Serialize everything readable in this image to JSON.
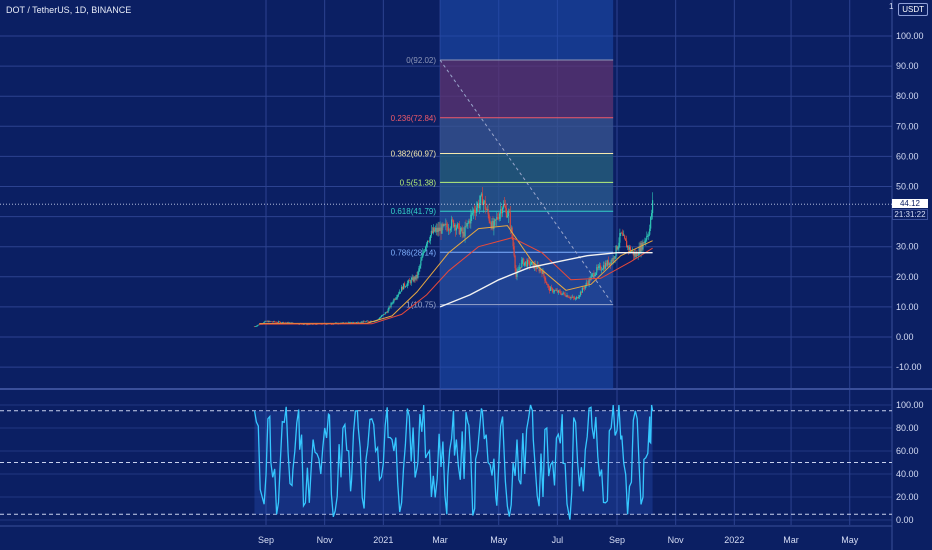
{
  "header": {
    "title": "DOT / TetherUS, 1D, BINANCE"
  },
  "currency": "USDT",
  "axis_top_partial_label": "1",
  "price_tag": {
    "value": "44.12",
    "countdown": "21:31:22"
  },
  "colors": {
    "background": "#0b1f63",
    "grid": "#2c4290",
    "candle_up": "#2ec4b6",
    "candle_down": "#e0483e",
    "ma_fast": "#e8a840",
    "ma_slow": "#e8493a",
    "ma_long": "#f2f2f2",
    "oscillator": "#35c7ff",
    "fib_red": "#8a2245",
    "fib_green": "#2e6f5a",
    "fib_range": "#1f4fb3"
  },
  "chart_data": [
    {
      "type": "candlestick",
      "title": "DOT / TetherUS, 1D, BINANCE",
      "ylim": [
        -15,
        105
      ],
      "y_ticks": [
        "100.00",
        "90.00",
        "80.00",
        "70.00",
        "60.00",
        "50.00",
        "40.00",
        "30.00",
        "20.00",
        "10.00",
        "0.00",
        "-10.00"
      ],
      "x_ticks": [
        "Sep",
        "Nov",
        "2021",
        "Mar",
        "May",
        "Jul",
        "Sep",
        "Nov",
        "2022",
        "Mar",
        "May"
      ],
      "last_price": 44.12,
      "price_path": {
        "x": [
          "2020-08-20",
          "2020-09-01",
          "2020-09-20",
          "2020-10-15",
          "2020-11-15",
          "2020-12-10",
          "2020-12-25",
          "2021-01-05",
          "2021-01-12",
          "2021-01-22",
          "2021-02-05",
          "2021-02-15",
          "2021-02-22",
          "2021-03-05",
          "2021-03-15",
          "2021-03-25",
          "2021-04-05",
          "2021-04-14",
          "2021-04-25",
          "2021-05-05",
          "2021-05-12",
          "2021-05-17",
          "2021-05-19",
          "2021-05-25",
          "2021-06-05",
          "2021-06-15",
          "2021-06-22",
          "2021-07-01",
          "2021-07-10",
          "2021-07-20",
          "2021-08-01",
          "2021-08-10",
          "2021-08-20",
          "2021-08-28",
          "2021-09-05",
          "2021-09-12",
          "2021-09-20",
          "2021-09-28",
          "2021-10-05",
          "2021-10-08"
        ],
        "close": [
          3.5,
          5.2,
          4.8,
          4.2,
          4.5,
          5.0,
          5.5,
          8.5,
          12.5,
          17.0,
          20.0,
          32.0,
          35.0,
          36.0,
          38.0,
          34.0,
          42.0,
          46.0,
          36.0,
          44.0,
          40.0,
          28.0,
          20.0,
          25.0,
          24.0,
          22.0,
          16.0,
          15.0,
          14.0,
          12.5,
          18.0,
          22.0,
          24.0,
          26.0,
          34.0,
          30.0,
          27.0,
          31.0,
          36.0,
          44.12
        ]
      },
      "series": [
        {
          "name": "",
          "role": "ma_fast",
          "x": [
            "2020-08-25",
            "2020-12-15",
            "2021-01-10",
            "2021-02-05",
            "2021-03-10",
            "2021-04-10",
            "2021-05-10",
            "2021-06-05",
            "2021-07-10",
            "2021-08-05",
            "2021-09-05",
            "2021-10-08"
          ],
          "y": [
            4.5,
            4.6,
            7.0,
            15.0,
            28.0,
            36.0,
            37.0,
            25.0,
            15.5,
            17.5,
            27.0,
            32.0
          ]
        },
        {
          "name": "",
          "role": "ma_slow",
          "x": [
            "2020-08-25",
            "2020-12-20",
            "2021-01-20",
            "2021-02-15",
            "2021-03-10",
            "2021-04-10",
            "2021-05-15",
            "2021-06-15",
            "2021-07-15",
            "2021-08-15",
            "2021-09-15",
            "2021-10-08"
          ],
          "y": [
            4.3,
            4.4,
            7.5,
            14.0,
            22.0,
            30.0,
            33.0,
            28.0,
            19.0,
            19.5,
            25.0,
            29.5
          ]
        },
        {
          "name": "",
          "role": "ma_long",
          "x": [
            "2021-03-01",
            "2021-04-01",
            "2021-05-01",
            "2021-06-01",
            "2021-07-01",
            "2021-08-01",
            "2021-09-01",
            "2021-10-08"
          ],
          "y": [
            10.0,
            14.0,
            19.0,
            23.0,
            25.0,
            27.0,
            28.0,
            28.0
          ]
        }
      ],
      "fibonacci": {
        "range": [
          "2021-03-01",
          "2021-08-28"
        ],
        "levels": [
          {
            "ratio": "0",
            "value": 92.02,
            "label": "0(92.02)"
          },
          {
            "ratio": "0.236",
            "value": 72.84,
            "label": "0.236(72.84)"
          },
          {
            "ratio": "0.382",
            "value": 60.97,
            "label": "0.382(60.97)"
          },
          {
            "ratio": "0.5",
            "value": 51.38,
            "label": "0.5(51.38)"
          },
          {
            "ratio": "0.618",
            "value": 41.79,
            "label": "0.618(41.79)"
          },
          {
            "ratio": "0.786",
            "value": 28.14,
            "label": "0.786(28.14)"
          },
          {
            "ratio": "1",
            "value": 10.75,
            "label": "1(10.75)"
          }
        ]
      }
    },
    {
      "type": "line",
      "title": "",
      "ylim": [
        -5,
        105
      ],
      "y_ticks": [
        "100.00",
        "80.00",
        "60.00",
        "40.00",
        "20.00",
        "0.00"
      ],
      "levels": [
        95,
        50,
        5
      ],
      "x": [
        "2020-08-20",
        "2020-08-28",
        "2020-09-05",
        "2020-09-12",
        "2020-09-20",
        "2020-09-28",
        "2020-10-05",
        "2020-10-12",
        "2020-10-20",
        "2020-10-28",
        "2020-11-05",
        "2020-11-12",
        "2020-11-20",
        "2020-11-28",
        "2020-12-05",
        "2020-12-12",
        "2020-12-20",
        "2020-12-28",
        "2021-01-05",
        "2021-01-12",
        "2021-01-20",
        "2021-01-28",
        "2021-02-05",
        "2021-02-12",
        "2021-02-20",
        "2021-02-28",
        "2021-03-08",
        "2021-03-15",
        "2021-03-22",
        "2021-03-30",
        "2021-04-06",
        "2021-04-13",
        "2021-04-20",
        "2021-04-28",
        "2021-05-05",
        "2021-05-12",
        "2021-05-20",
        "2021-05-28",
        "2021-06-05",
        "2021-06-12",
        "2021-06-20",
        "2021-06-28",
        "2021-07-06",
        "2021-07-13",
        "2021-07-20",
        "2021-07-28",
        "2021-08-05",
        "2021-08-12",
        "2021-08-20",
        "2021-08-28",
        "2021-09-05",
        "2021-09-12",
        "2021-09-20",
        "2021-09-28",
        "2021-10-05",
        "2021-10-08"
      ],
      "y": [
        95,
        20,
        90,
        5,
        85,
        30,
        96,
        15,
        70,
        40,
        92,
        8,
        80,
        25,
        95,
        10,
        88,
        35,
        98,
        60,
        15,
        90,
        45,
        100,
        20,
        75,
        5,
        95,
        35,
        85,
        10,
        97,
        50,
        20,
        90,
        3,
        70,
        40,
        95,
        12,
        80,
        30,
        92,
        5,
        85,
        25,
        98,
        55,
        15,
        100,
        70,
        5,
        95,
        20,
        90,
        95
      ]
    }
  ]
}
